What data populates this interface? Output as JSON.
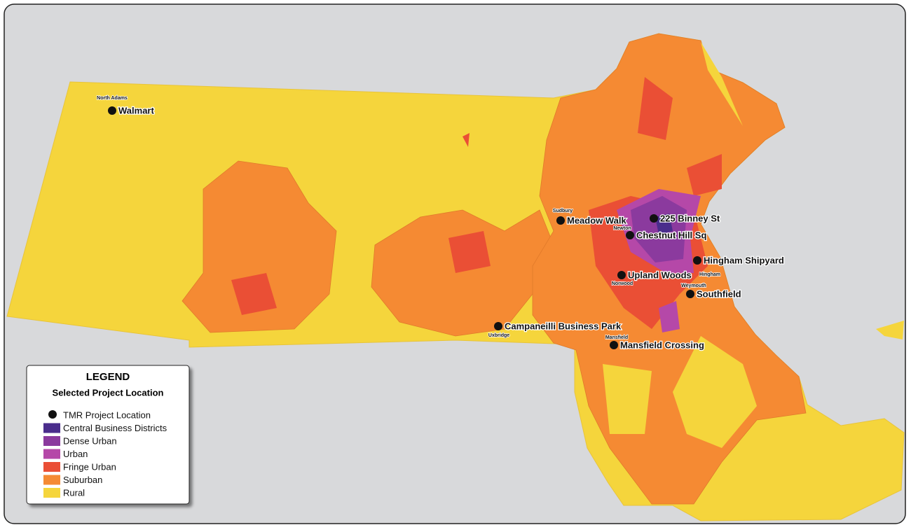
{
  "legend": {
    "title": "LEGEND",
    "subtitle": "Selected Project Location",
    "items": [
      {
        "label": "TMR Project Location",
        "color": "#111111"
      },
      {
        "label": "Central Business Districts",
        "color": "#4a2d8c"
      },
      {
        "label": "Dense Urban",
        "color": "#8b3a9e"
      },
      {
        "label": "Urban",
        "color": "#b548a8"
      },
      {
        "label": "Fringe Urban",
        "color": "#ea4f35"
      },
      {
        "label": "Suburban",
        "color": "#f58a33"
      },
      {
        "label": "Rural",
        "color": "#f5d53c"
      }
    ]
  },
  "locations": [
    {
      "name": "Walmart",
      "town": "North Adams"
    },
    {
      "name": "Meadow Walk",
      "town": "Sudbury"
    },
    {
      "name": "225 Binney St"
    },
    {
      "name": "Chestnut Hill Sq",
      "town": "Newton"
    },
    {
      "name": "Hingham Shipyard",
      "town": "Hingham"
    },
    {
      "name": "Upland Woods",
      "town": "Norwood"
    },
    {
      "name": "Southfield",
      "town": "Weymouth"
    },
    {
      "name": "Campaneilli Business Park",
      "town": "Uxbridge"
    },
    {
      "name": "Mansfield Crossing",
      "town": "Mansfield"
    }
  ]
}
